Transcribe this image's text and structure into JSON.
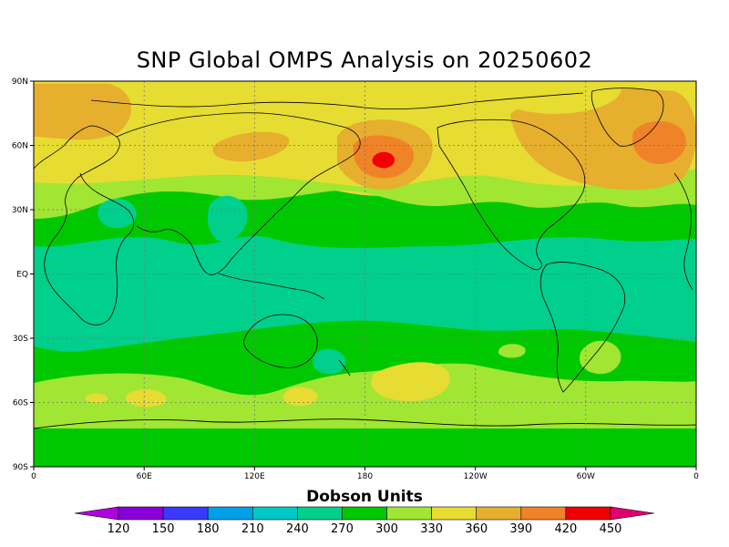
{
  "title": "SNP Global OMPS Analysis on 20250602",
  "axes": {
    "lat_ticks": [
      "90N",
      "60N",
      "30N",
      "EQ",
      "30S",
      "60S",
      "90S"
    ],
    "lon_ticks": [
      "0",
      "60E",
      "120E",
      "180",
      "120W",
      "60W",
      "0"
    ]
  },
  "colorbar": {
    "title": "Dobson Units",
    "labels": [
      "120",
      "150",
      "180",
      "210",
      "240",
      "270",
      "300",
      "330",
      "360",
      "390",
      "420",
      "450"
    ],
    "colors": [
      "#8a00d8",
      "#3a3aff",
      "#00a0e8",
      "#00c8c8",
      "#00d08c",
      "#00c800",
      "#a0e632",
      "#e6dc32",
      "#e6af2d",
      "#f08228",
      "#f00000"
    ],
    "low_end_color": "#b000e0",
    "high_end_color": "#e0006e"
  },
  "chart_data": {
    "type": "heatmap",
    "title": "SNP Global OMPS Analysis on 20250602",
    "quantity": "Dobson Units",
    "levels": [
      120,
      150,
      180,
      210,
      240,
      270,
      300,
      330,
      360,
      390,
      420,
      450
    ],
    "x_range": [
      0,
      360
    ],
    "y_range": [
      -90,
      90
    ],
    "x_ticks": [
      "0",
      "60E",
      "120E",
      "180",
      "120W",
      "60W",
      "0"
    ],
    "y_ticks": [
      "90N",
      "60N",
      "30N",
      "EQ",
      "30S",
      "60S",
      "90S"
    ]
  }
}
